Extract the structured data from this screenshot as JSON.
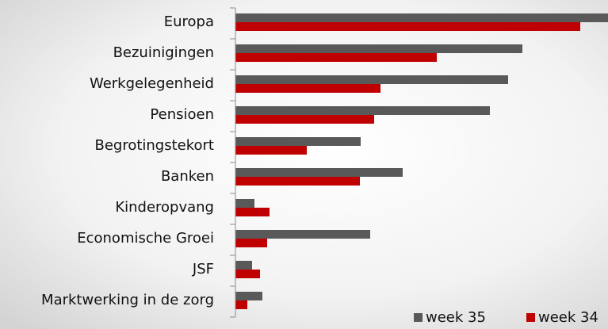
{
  "chart_data": {
    "type": "barh",
    "categories": [
      "Europa",
      "Bezuinigingen",
      "Werkgelegenheid",
      "Pensioen",
      "Begrotingstekort",
      "Banken",
      "Kinderopvang",
      "Economische Groei",
      "JSF",
      "Marktwerking in de zorg"
    ],
    "series": [
      {
        "name": "week 35",
        "color": "#595959",
        "values": [
          470,
          362,
          344,
          321,
          158,
          211,
          24,
          170,
          21,
          34
        ]
      },
      {
        "name": "week 34",
        "color": "#c00000",
        "values": [
          435,
          254,
          183,
          175,
          90,
          157,
          43,
          40,
          31,
          15
        ]
      }
    ],
    "xlim": [
      0,
      470
    ],
    "legend": "lower right"
  }
}
